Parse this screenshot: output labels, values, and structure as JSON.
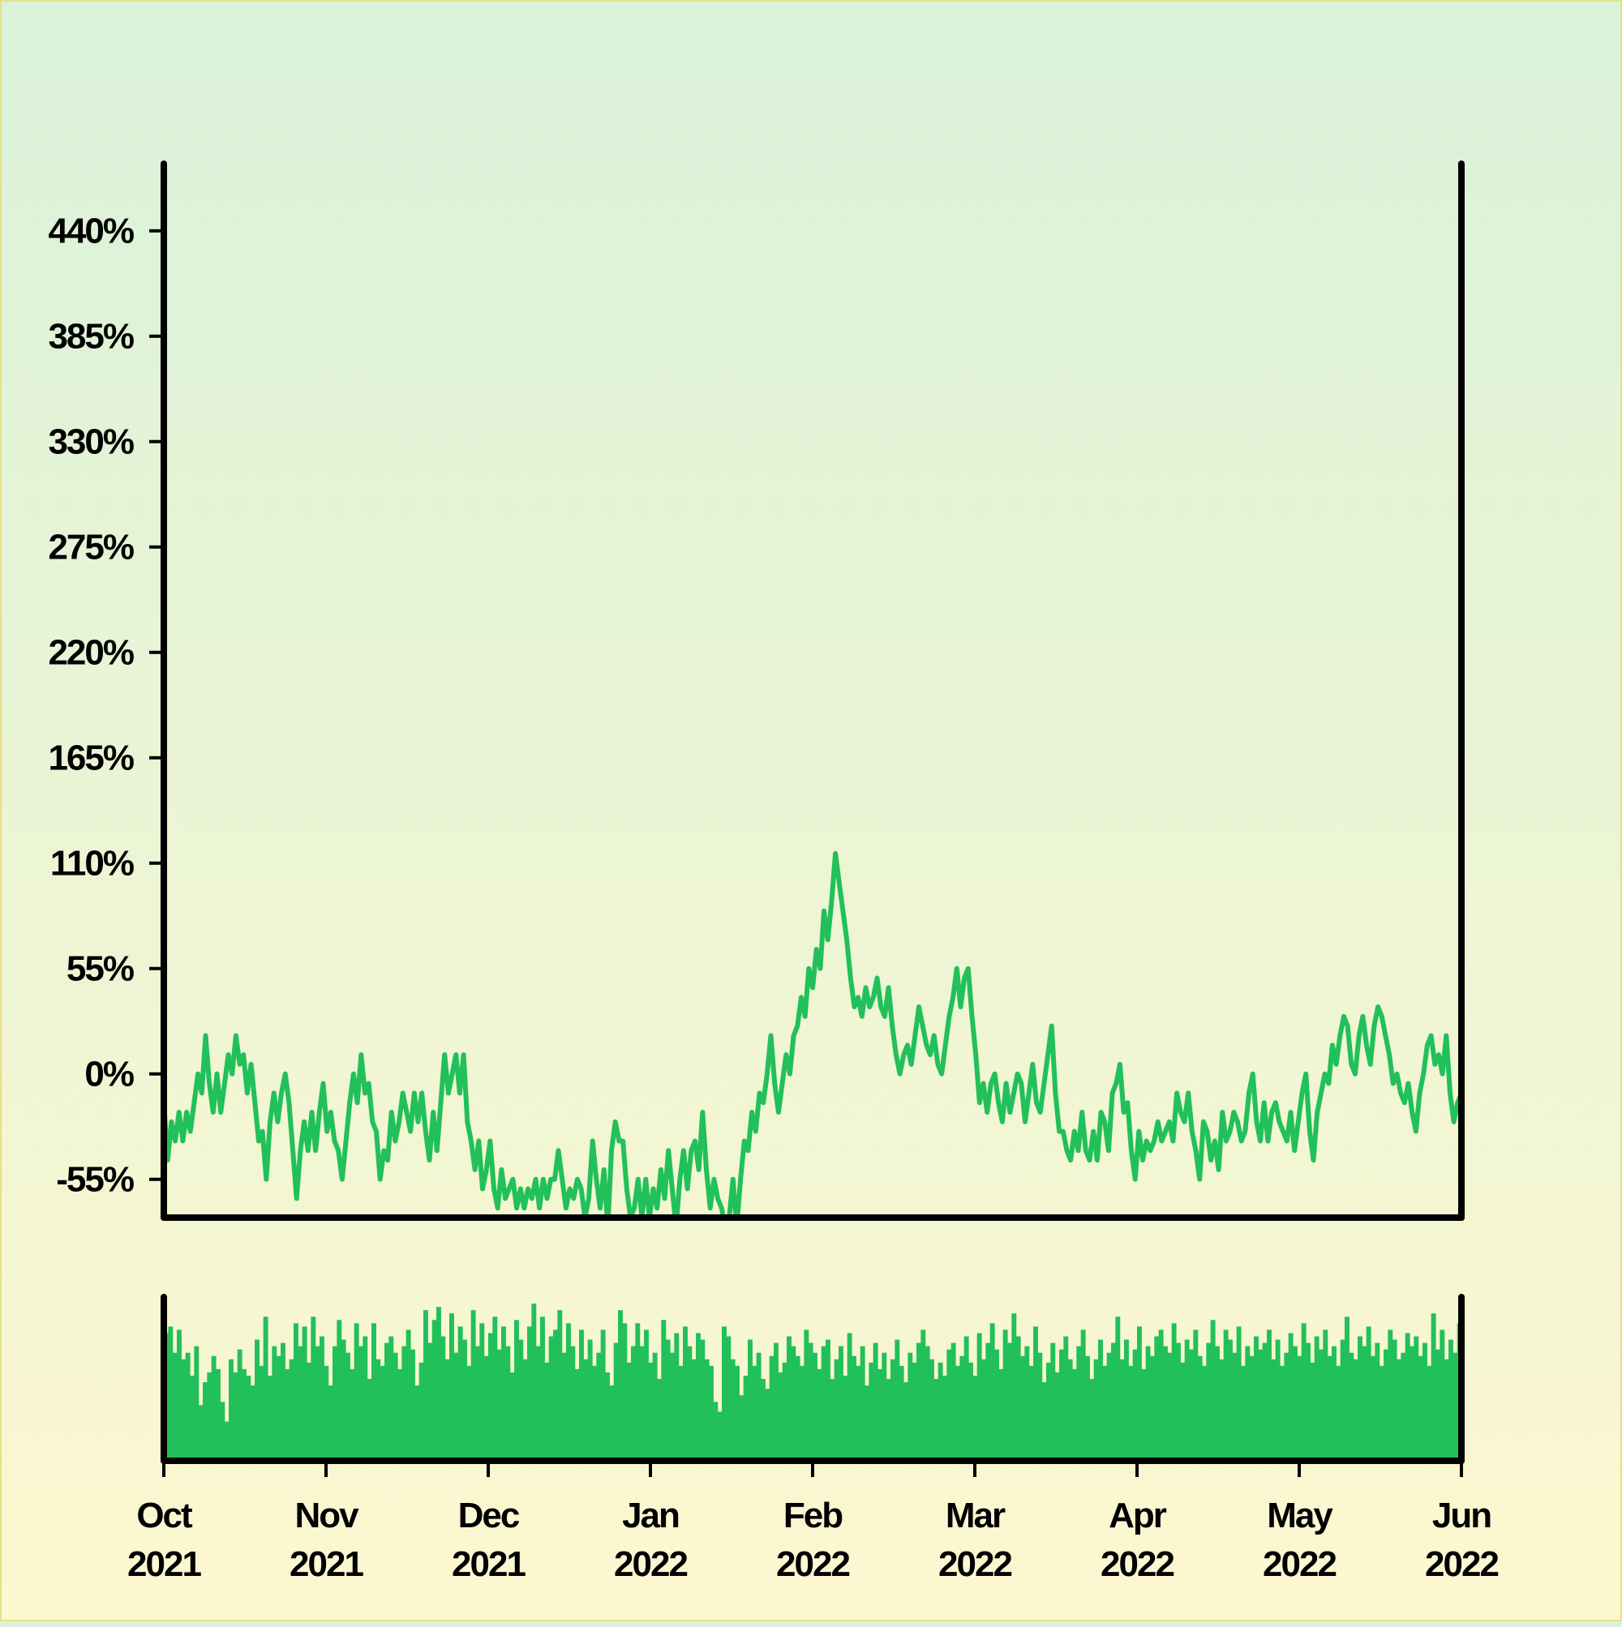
{
  "chart_data": {
    "type": "line",
    "title": "",
    "xlabel": "",
    "ylabel": "",
    "colors": {
      "series": "#22c05a",
      "axes": "#000000"
    },
    "y_ticks": [
      "440%",
      "385%",
      "330%",
      "275%",
      "220%",
      "165%",
      "110%",
      "55%",
      "0%",
      "-55%"
    ],
    "y_tick_values": [
      440,
      385,
      330,
      275,
      220,
      165,
      110,
      55,
      0,
      -55
    ],
    "ylim": [
      -75,
      475
    ],
    "x_ticks": [
      {
        "month": "Oct",
        "year": "2021"
      },
      {
        "month": "Nov",
        "year": "2021"
      },
      {
        "month": "Dec",
        "year": "2021"
      },
      {
        "month": "Jan",
        "year": "2022"
      },
      {
        "month": "Feb",
        "year": "2022"
      },
      {
        "month": "Mar",
        "year": "2022"
      },
      {
        "month": "Apr",
        "year": "2022"
      },
      {
        "month": "May",
        "year": "2022"
      },
      {
        "month": "Jun",
        "year": "2022"
      }
    ],
    "xlim": [
      "2021-10-01",
      "2022-06-01"
    ],
    "grid": false,
    "legend": "none",
    "series": [
      {
        "values_pct": [
          -15,
          -45,
          -25,
          -35,
          -20,
          -35,
          -20,
          -30,
          -15,
          0,
          -10,
          20,
          -5,
          -20,
          0,
          -20,
          -5,
          10,
          0,
          20,
          5,
          10,
          -10,
          5,
          -15,
          -35,
          -30,
          -55,
          -25,
          -10,
          -25,
          -10,
          0,
          -15,
          -40,
          -65,
          -40,
          -25,
          -40,
          -20,
          -40,
          -20,
          -5,
          -30,
          -20,
          -35,
          -40,
          -55,
          -35,
          -15,
          0,
          -15,
          10,
          -10,
          -5,
          -25,
          -30,
          -55,
          -40,
          -45,
          -20,
          -35,
          -25,
          -10,
          -20,
          -30,
          -10,
          -25,
          -10,
          -30,
          -45,
          -20,
          -40,
          -15,
          10,
          -10,
          0,
          10,
          -10,
          10,
          -25,
          -35,
          -50,
          -35,
          -60,
          -50,
          -35,
          -60,
          -70,
          -50,
          -65,
          -60,
          -55,
          -70,
          -60,
          -70,
          -60,
          -65,
          -55,
          -70,
          -55,
          -65,
          -55,
          -55,
          -40,
          -55,
          -70,
          -60,
          -65,
          -55,
          -60,
          -75,
          -65,
          -35,
          -55,
          -70,
          -50,
          -80,
          -40,
          -25,
          -35,
          -35,
          -60,
          -75,
          -70,
          -55,
          -75,
          -55,
          -75,
          -60,
          -70,
          -50,
          -65,
          -40,
          -60,
          -80,
          -55,
          -40,
          -60,
          -40,
          -35,
          -50,
          -20,
          -50,
          -70,
          -55,
          -65,
          -70,
          -80,
          -75,
          -55,
          -80,
          -55,
          -35,
          -40,
          -20,
          -30,
          -10,
          -15,
          0,
          20,
          -5,
          -20,
          -5,
          10,
          0,
          20,
          25,
          40,
          30,
          55,
          45,
          65,
          55,
          85,
          70,
          90,
          115,
          100,
          85,
          70,
          50,
          35,
          40,
          30,
          45,
          35,
          40,
          50,
          35,
          30,
          45,
          25,
          10,
          0,
          10,
          15,
          5,
          20,
          35,
          25,
          15,
          10,
          20,
          5,
          0,
          15,
          30,
          40,
          55,
          35,
          50,
          55,
          30,
          10,
          -15,
          -5,
          -20,
          -5,
          0,
          -15,
          -25,
          -5,
          -20,
          -10,
          0,
          -5,
          -25,
          -10,
          5,
          -15,
          -20,
          -5,
          10,
          25,
          -10,
          -30,
          -30,
          -40,
          -45,
          -30,
          -40,
          -20,
          -40,
          -45,
          -30,
          -45,
          -20,
          -25,
          -40,
          -10,
          -5,
          5,
          -20,
          -15,
          -40,
          -55,
          -30,
          -45,
          -35,
          -40,
          -35,
          -25,
          -35,
          -30,
          -25,
          -35,
          -10,
          -20,
          -25,
          -10,
          -30,
          -40,
          -55,
          -25,
          -30,
          -45,
          -35,
          -50,
          -20,
          -35,
          -30,
          -20,
          -25,
          -35,
          -30,
          -10,
          0,
          -25,
          -35,
          -15,
          -35,
          -20,
          -15,
          -25,
          -30,
          -35,
          -20,
          -40,
          -25,
          -10,
          0,
          -30,
          -45,
          -20,
          -10,
          0,
          -5,
          15,
          5,
          20,
          30,
          25,
          5,
          0,
          20,
          30,
          15,
          5,
          25,
          35,
          30,
          20,
          10,
          -5,
          0,
          -10,
          -15,
          -5,
          -20,
          -30,
          -10,
          0,
          15,
          20,
          5,
          10,
          0,
          20,
          -10,
          -25,
          -15,
          -10
        ]
      }
    ],
    "volume": {
      "values": [
        0.78,
        0.82,
        0.66,
        0.8,
        0.62,
        0.66,
        0.52,
        0.7,
        0.34,
        0.48,
        0.54,
        0.64,
        0.56,
        0.36,
        0.24,
        0.62,
        0.54,
        0.68,
        0.56,
        0.52,
        0.46,
        0.74,
        0.58,
        0.88,
        0.52,
        0.7,
        0.64,
        0.72,
        0.56,
        0.62,
        0.84,
        0.7,
        0.82,
        0.6,
        0.88,
        0.7,
        0.76,
        0.58,
        0.46,
        0.7,
        0.86,
        0.74,
        0.66,
        0.56,
        0.84,
        0.7,
        0.76,
        0.5,
        0.84,
        0.62,
        0.58,
        0.72,
        0.76,
        0.66,
        0.56,
        0.7,
        0.8,
        0.68,
        0.46,
        0.6,
        0.92,
        0.72,
        0.86,
        0.94,
        0.76,
        0.62,
        0.9,
        0.66,
        0.82,
        0.74,
        0.58,
        0.92,
        0.7,
        0.84,
        0.64,
        0.78,
        0.88,
        0.68,
        0.82,
        0.7,
        0.54,
        0.86,
        0.74,
        0.62,
        0.82,
        0.96,
        0.7,
        0.88,
        0.6,
        0.76,
        0.8,
        0.92,
        0.66,
        0.84,
        0.7,
        0.56,
        0.8,
        0.62,
        0.74,
        0.58,
        0.66,
        0.8,
        0.54,
        0.46,
        0.72,
        0.92,
        0.84,
        0.6,
        0.7,
        0.84,
        0.7,
        0.8,
        0.6,
        0.66,
        0.5,
        0.86,
        0.74,
        0.66,
        0.78,
        0.58,
        0.82,
        0.7,
        0.62,
        0.78,
        0.74,
        0.62,
        0.58,
        0.36,
        0.3,
        0.82,
        0.76,
        0.62,
        0.58,
        0.4,
        0.52,
        0.74,
        0.58,
        0.66,
        0.5,
        0.44,
        0.64,
        0.72,
        0.54,
        0.6,
        0.76,
        0.7,
        0.64,
        0.58,
        0.8,
        0.72,
        0.66,
        0.56,
        0.7,
        0.74,
        0.5,
        0.62,
        0.7,
        0.52,
        0.78,
        0.64,
        0.58,
        0.7,
        0.46,
        0.6,
        0.72,
        0.56,
        0.66,
        0.5,
        0.62,
        0.74,
        0.58,
        0.48,
        0.66,
        0.6,
        0.72,
        0.8,
        0.7,
        0.62,
        0.5,
        0.6,
        0.52,
        0.68,
        0.72,
        0.58,
        0.64,
        0.76,
        0.6,
        0.52,
        0.78,
        0.62,
        0.72,
        0.84,
        0.68,
        0.56,
        0.8,
        0.72,
        0.9,
        0.76,
        0.64,
        0.7,
        0.58,
        0.82,
        0.66,
        0.48,
        0.6,
        0.72,
        0.54,
        0.68,
        0.76,
        0.62,
        0.56,
        0.7,
        0.8,
        0.64,
        0.5,
        0.62,
        0.74,
        0.58,
        0.66,
        0.72,
        0.88,
        0.62,
        0.74,
        0.58,
        0.68,
        0.82,
        0.56,
        0.7,
        0.64,
        0.76,
        0.8,
        0.7,
        0.66,
        0.84,
        0.72,
        0.6,
        0.74,
        0.68,
        0.8,
        0.64,
        0.58,
        0.72,
        0.86,
        0.7,
        0.62,
        0.8,
        0.74,
        0.66,
        0.82,
        0.58,
        0.7,
        0.64,
        0.76,
        0.68,
        0.72,
        0.8,
        0.62,
        0.74,
        0.58,
        0.66,
        0.78,
        0.7,
        0.64,
        0.84,
        0.72,
        0.6,
        0.76,
        0.68,
        0.8,
        0.64,
        0.7,
        0.58,
        0.74,
        0.88,
        0.66,
        0.62,
        0.76,
        0.7,
        0.82,
        0.64,
        0.72,
        0.58,
        0.68,
        0.8,
        0.74,
        0.62,
        0.66,
        0.78,
        0.7,
        0.76,
        0.64,
        0.72,
        0.58,
        0.9,
        0.68,
        0.8,
        0.62,
        0.74,
        0.66,
        0.84
      ]
    }
  }
}
